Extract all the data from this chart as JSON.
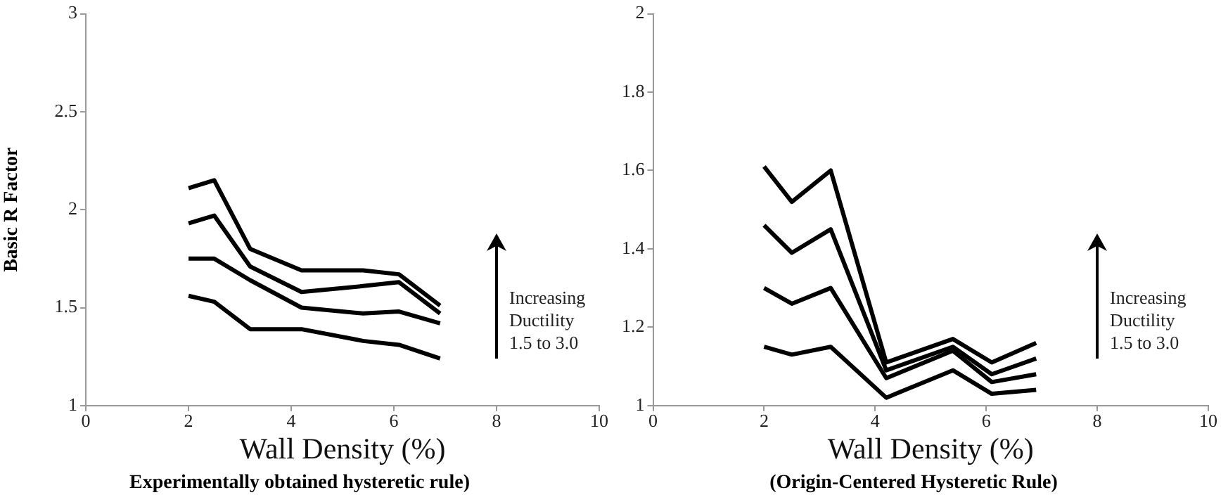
{
  "chart_data": [
    {
      "type": "line",
      "title": "Experimentally obtained hysteretic rule)",
      "xlabel": "Wall Density (%)",
      "ylabel": "Basic R Factor",
      "xlim": [
        0,
        10
      ],
      "xticks": [
        0,
        2,
        4,
        6,
        8,
        10
      ],
      "ylim": [
        1,
        3
      ],
      "yticks": [
        1,
        1.5,
        2,
        2.5,
        3
      ],
      "grid": false,
      "legend": false,
      "marker": "none",
      "line_style": "solid",
      "x": [
        2,
        2.5,
        3.2,
        4.2,
        5.4,
        6.1,
        6.9
      ],
      "series": [
        {
          "color": "#000000",
          "values": [
            2.11,
            2.15,
            1.8,
            1.69,
            1.69,
            1.67,
            1.51
          ]
        },
        {
          "color": "#000000",
          "values": [
            1.93,
            1.97,
            1.71,
            1.58,
            1.61,
            1.63,
            1.47
          ]
        },
        {
          "color": "#000000",
          "values": [
            1.75,
            1.75,
            1.64,
            1.5,
            1.47,
            1.48,
            1.42
          ]
        },
        {
          "color": "#000000",
          "values": [
            1.56,
            1.53,
            1.39,
            1.39,
            1.33,
            1.31,
            1.24
          ]
        }
      ],
      "annotations": [
        "Increasing\nDuctility\n1.5 to 3.0"
      ]
    },
    {
      "type": "line",
      "title": "(Origin-Centered Hysteretic Rule)",
      "xlabel": "Wall Density (%)",
      "xlim": [
        0,
        10
      ],
      "xticks": [
        0,
        2,
        4,
        6,
        8,
        10
      ],
      "ylim": [
        1,
        2
      ],
      "yticks": [
        1,
        1.2,
        1.4,
        1.6,
        1.8,
        2
      ],
      "grid": false,
      "legend": false,
      "marker": "none",
      "line_style": "solid",
      "x": [
        2,
        2.5,
        3.2,
        4.2,
        5.4,
        6.1,
        6.9
      ],
      "series": [
        {
          "color": "#000000",
          "values": [
            1.61,
            1.52,
            1.6,
            1.11,
            1.17,
            1.11,
            1.16
          ]
        },
        {
          "color": "#000000",
          "values": [
            1.46,
            1.39,
            1.45,
            1.09,
            1.15,
            1.08,
            1.12
          ]
        },
        {
          "color": "#000000",
          "values": [
            1.3,
            1.26,
            1.3,
            1.07,
            1.14,
            1.06,
            1.08
          ]
        },
        {
          "color": "#000000",
          "values": [
            1.15,
            1.13,
            1.15,
            1.02,
            1.09,
            1.03,
            1.04
          ]
        }
      ],
      "annotations": [
        "Increasing\nDuctility\n1.5 to 3.0"
      ]
    }
  ]
}
